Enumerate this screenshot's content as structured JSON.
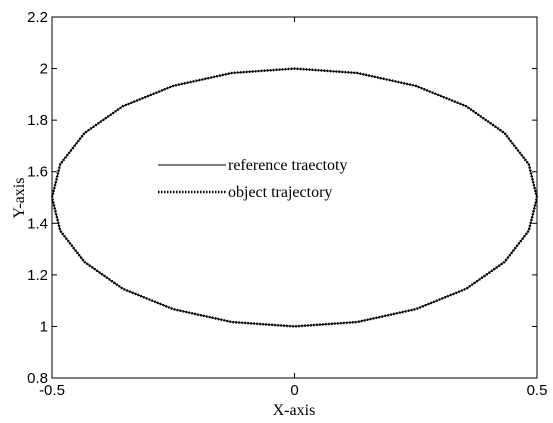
{
  "chart_data": {
    "type": "line",
    "x_label": "X-axis",
    "y_label": "Y-axis",
    "x": [
      0.5,
      0.483,
      0.433,
      0.354,
      0.25,
      0.129,
      0,
      -0.129,
      -0.25,
      -0.354,
      -0.433,
      -0.483,
      -0.5,
      -0.483,
      -0.433,
      -0.354,
      -0.25,
      -0.129,
      0,
      0.129,
      0.25,
      0.354,
      0.433,
      0.483,
      0.5
    ],
    "series": [
      {
        "name": "reference traectoty",
        "color": "#000000",
        "style": "solid",
        "values": [
          1.5,
          1.629,
          1.75,
          1.854,
          1.933,
          1.983,
          2,
          1.983,
          1.933,
          1.854,
          1.75,
          1.629,
          1.5,
          1.371,
          1.25,
          1.146,
          1.067,
          1.017,
          1,
          1.017,
          1.067,
          1.146,
          1.25,
          1.371,
          1.5
        ]
      },
      {
        "name": "object trajectory",
        "color": "#000000",
        "style": "dotted",
        "values": [
          1.5,
          1.629,
          1.75,
          1.854,
          1.933,
          1.983,
          2,
          1.983,
          1.933,
          1.854,
          1.75,
          1.629,
          1.5,
          1.371,
          1.25,
          1.146,
          1.067,
          1.017,
          1,
          1.017,
          1.067,
          1.146,
          1.25,
          1.371,
          1.5
        ]
      }
    ],
    "xlim": [
      -0.5,
      0.5
    ],
    "xticks": [
      -0.5,
      0,
      0.5
    ],
    "ylim": [
      0.8,
      2.2
    ],
    "yticks": [
      0.8,
      1,
      1.2,
      1.4,
      1.6,
      1.8,
      2,
      2.2
    ],
    "grid": false
  }
}
